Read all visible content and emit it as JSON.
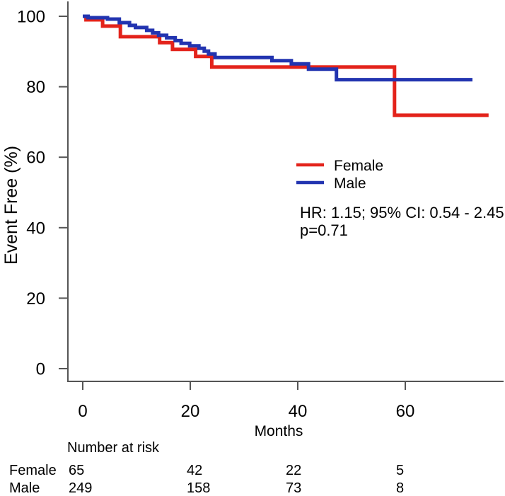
{
  "chart_data": {
    "type": "line",
    "subtype": "kaplan-meier-step",
    "title": "",
    "xlabel": "Months",
    "ylabel": "Event Free (%)",
    "xlim": [
      0,
      78
    ],
    "ylim": [
      0,
      100
    ],
    "grid": false,
    "x_ticks": [
      0,
      20,
      40,
      60
    ],
    "x_tick_labels": [
      "0",
      "20",
      "40",
      "60"
    ],
    "y_ticks": [
      100,
      80,
      60,
      40,
      20,
      0
    ],
    "y_tick_labels": [
      "100",
      "80",
      "60",
      "40",
      "20",
      "0"
    ],
    "legend_position": "center-right",
    "series": [
      {
        "name": "Female",
        "color": "#e3231b",
        "end_time": 75.5,
        "points": [
          [
            0,
            100
          ],
          [
            0.6,
            99.0
          ],
          [
            3.7,
            97.2
          ],
          [
            7.0,
            94.2
          ],
          [
            14.3,
            92.5
          ],
          [
            16.7,
            90.6
          ],
          [
            21.0,
            88.6
          ],
          [
            24.0,
            85.6
          ],
          [
            58.0,
            71.9
          ]
        ]
      },
      {
        "name": "Male",
        "color": "#2234b0",
        "end_time": 72.5,
        "points": [
          [
            0,
            100
          ],
          [
            1.0,
            99.6
          ],
          [
            4.6,
            99.2
          ],
          [
            6.8,
            98.2
          ],
          [
            8.7,
            97.4
          ],
          [
            9.8,
            96.8
          ],
          [
            11.9,
            96.0
          ],
          [
            13.0,
            95.3
          ],
          [
            14.1,
            94.6
          ],
          [
            15.6,
            93.9
          ],
          [
            17.2,
            93.1
          ],
          [
            18.3,
            92.3
          ],
          [
            19.9,
            91.6
          ],
          [
            21.6,
            90.9
          ],
          [
            22.6,
            90.1
          ],
          [
            23.4,
            89.3
          ],
          [
            24.6,
            88.3
          ],
          [
            35.2,
            87.4
          ],
          [
            38.8,
            86.5
          ],
          [
            42.0,
            85.0
          ],
          [
            47.2,
            82.0
          ]
        ]
      }
    ],
    "annotations": {
      "hr_line": "HR: 1.15; 95% CI: 0.54 - 2.45",
      "p_line": "p=0.71"
    },
    "risk_table": {
      "title": "Number at risk",
      "times": [
        0,
        20,
        40,
        60
      ],
      "rows": [
        {
          "label": "Female",
          "counts": [
            "65",
            "42",
            "22",
            "5"
          ]
        },
        {
          "label": "Male",
          "counts": [
            "249",
            "158",
            "73",
            "8"
          ]
        }
      ]
    }
  }
}
